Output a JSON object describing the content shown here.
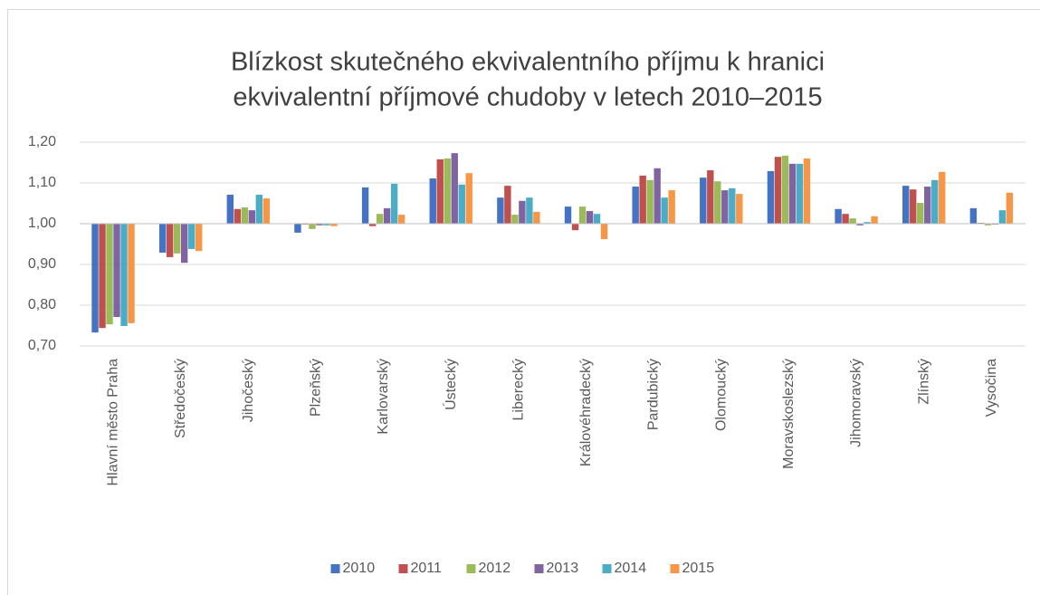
{
  "chart_data": {
    "type": "bar",
    "title": [
      "Blízkost skutečného ekvivalentního příjmu k hranici",
      "ekvivalentní příjmové chudoby v letech 2010–2015"
    ],
    "categories": [
      "Hlavní město Praha",
      "Středočeský",
      "Jihočeský",
      "Plzeňský",
      "Karlovarský",
      "Ústecký",
      "Liberecký",
      "Královéhradecký",
      "Pardubický",
      "Olomoucký",
      "Moravskoslezský",
      "Jihomoravský",
      "Zlínský",
      "Vysočina"
    ],
    "series": [
      {
        "name": "2010",
        "color": "#4472c4",
        "values": [
          0.733,
          0.929,
          1.071,
          0.978,
          1.089,
          1.111,
          1.064,
          1.042,
          1.091,
          1.113,
          1.129,
          1.036,
          1.093,
          1.038
        ]
      },
      {
        "name": "2011",
        "color": "#c0504d",
        "values": [
          0.744,
          0.918,
          1.036,
          0.998,
          0.994,
          1.158,
          1.093,
          0.984,
          1.118,
          1.131,
          1.164,
          1.024,
          1.084,
          1.002
        ]
      },
      {
        "name": "2012",
        "color": "#9bbb59",
        "values": [
          0.753,
          0.927,
          1.04,
          0.987,
          1.024,
          1.16,
          1.022,
          1.042,
          1.107,
          1.104,
          1.167,
          1.013,
          1.051,
          0.996
        ]
      },
      {
        "name": "2013",
        "color": "#8064a2",
        "values": [
          0.771,
          0.904,
          1.033,
          0.996,
          1.038,
          1.173,
          1.056,
          1.031,
          1.136,
          1.082,
          1.147,
          0.996,
          1.091,
          0.998
        ]
      },
      {
        "name": "2014",
        "color": "#4bacc6",
        "values": [
          0.749,
          0.938,
          1.071,
          0.996,
          1.098,
          1.096,
          1.064,
          1.024,
          1.064,
          1.087,
          1.147,
          1.004,
          1.107,
          1.033
        ]
      },
      {
        "name": "2015",
        "color": "#f79646",
        "values": [
          0.756,
          0.933,
          1.062,
          0.994,
          1.022,
          1.124,
          1.029,
          0.962,
          1.082,
          1.073,
          1.16,
          1.018,
          1.127,
          1.076
        ]
      }
    ],
    "ylim": [
      0.7,
      1.2
    ],
    "yticks": [
      {
        "value": 0.7,
        "label": "0,70"
      },
      {
        "value": 0.8,
        "label": "0,80"
      },
      {
        "value": 0.9,
        "label": "0,90"
      },
      {
        "value": 1.0,
        "label": "1,00"
      },
      {
        "value": 1.1,
        "label": "1,10"
      },
      {
        "value": 1.2,
        "label": "1,20"
      }
    ],
    "baseline": 1,
    "grid": true,
    "legend": "bottom"
  }
}
